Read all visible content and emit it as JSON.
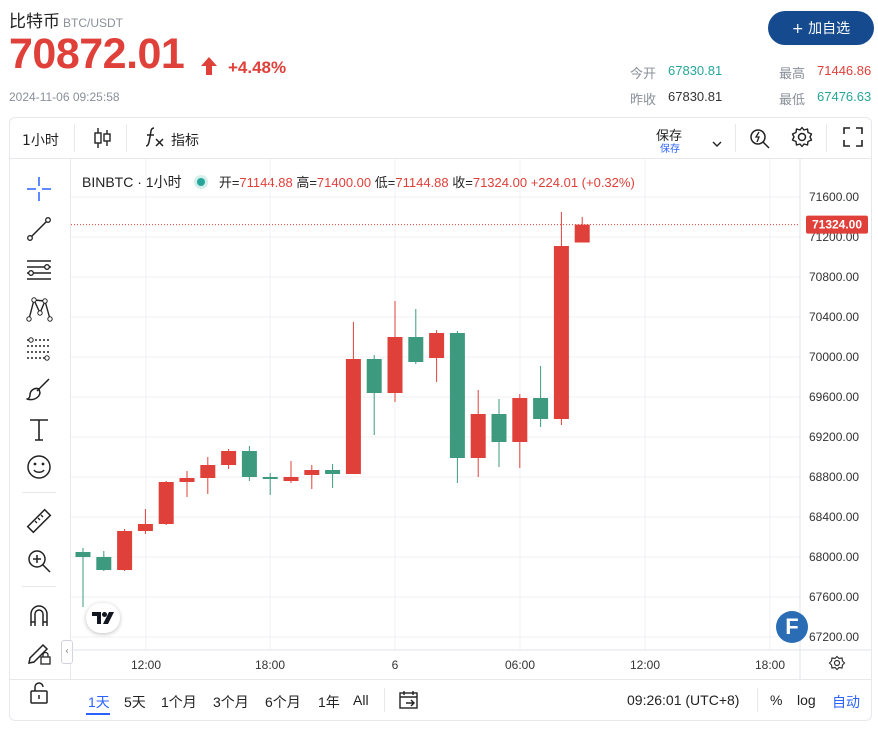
{
  "header": {
    "name": "比特币",
    "pair": "BTC/USDT",
    "price": "70872.01",
    "change_pct": "+4.48%",
    "timestamp": "2024-11-06 09:25:58",
    "add_button": "+ 加自选",
    "stats": {
      "open_label": "今开",
      "open_value": "67830.81",
      "high_label": "最高",
      "high_value": "71446.86",
      "prev_close_label": "昨收",
      "prev_close_value": "67830.81",
      "low_label": "最低",
      "low_value": "67476.63"
    }
  },
  "toolbar": {
    "interval": "1小时",
    "indicators": "指标",
    "save": "保存",
    "save_sub": "保存"
  },
  "legend": {
    "symbol": "BINBTC · 1小时",
    "open_label": "开=",
    "open": "71144.88",
    "high_label": "高=",
    "high": "71400.00",
    "low_label": "低=",
    "low": "71144.88",
    "close_label": "收=",
    "close": "71324.00",
    "change": "+224.01 (+0.32%)"
  },
  "bottom": {
    "ranges": [
      "1天",
      "5天",
      "1个月",
      "3个月",
      "6个月",
      "1年",
      "All"
    ],
    "time": "09:26:01 (UTC+8)",
    "pct": "%",
    "log": "log",
    "auto": "自动"
  },
  "colors": {
    "up": "#e0403a",
    "down": "#3d9a7e",
    "brand": "#154a8e"
  },
  "chart_data": {
    "type": "candlestick",
    "interval": "1小时",
    "symbol": "BINBTC",
    "x_ticks": [
      "12:00",
      "18:00",
      "6",
      "06:00",
      "12:00",
      "18:00"
    ],
    "y_ticks": [
      71600,
      71200,
      70800,
      70400,
      70000,
      69600,
      69200,
      68800,
      68400,
      68000,
      67600,
      67200
    ],
    "ylim": [
      67000,
      71900
    ],
    "last_price_label": "71324.00",
    "candles": [
      {
        "o": 68050,
        "h": 68090,
        "l": 67500,
        "c": 68000
      },
      {
        "o": 68000,
        "h": 68060,
        "l": 67860,
        "c": 67870
      },
      {
        "o": 67870,
        "h": 68280,
        "l": 67860,
        "c": 68260
      },
      {
        "o": 68260,
        "h": 68480,
        "l": 68230,
        "c": 68330
      },
      {
        "o": 68330,
        "h": 68760,
        "l": 68320,
        "c": 68750
      },
      {
        "o": 68750,
        "h": 68860,
        "l": 68600,
        "c": 68790
      },
      {
        "o": 68790,
        "h": 69000,
        "l": 68630,
        "c": 68920
      },
      {
        "o": 68920,
        "h": 69080,
        "l": 68880,
        "c": 69060
      },
      {
        "o": 69060,
        "h": 69110,
        "l": 68760,
        "c": 68800
      },
      {
        "o": 68800,
        "h": 68840,
        "l": 68620,
        "c": 68780
      },
      {
        "o": 68760,
        "h": 68960,
        "l": 68740,
        "c": 68800
      },
      {
        "o": 68820,
        "h": 68920,
        "l": 68680,
        "c": 68870
      },
      {
        "o": 68870,
        "h": 68930,
        "l": 68690,
        "c": 68830
      },
      {
        "o": 68830,
        "h": 70350,
        "l": 68830,
        "c": 69980
      },
      {
        "o": 69980,
        "h": 70020,
        "l": 69220,
        "c": 69640
      },
      {
        "o": 69640,
        "h": 70560,
        "l": 69550,
        "c": 70200
      },
      {
        "o": 70200,
        "h": 70480,
        "l": 69930,
        "c": 69950
      },
      {
        "o": 69990,
        "h": 70270,
        "l": 69750,
        "c": 70240
      },
      {
        "o": 70240,
        "h": 70260,
        "l": 68740,
        "c": 68990
      },
      {
        "o": 68990,
        "h": 69670,
        "l": 68800,
        "c": 69430
      },
      {
        "o": 69430,
        "h": 69580,
        "l": 68900,
        "c": 69150
      },
      {
        "o": 69150,
        "h": 69630,
        "l": 68890,
        "c": 69590
      },
      {
        "o": 69590,
        "h": 69910,
        "l": 69300,
        "c": 69380
      },
      {
        "o": 69380,
        "h": 71450,
        "l": 69320,
        "c": 71110
      },
      {
        "o": 71144.88,
        "h": 71400,
        "l": 71144.88,
        "c": 71324
      }
    ]
  }
}
